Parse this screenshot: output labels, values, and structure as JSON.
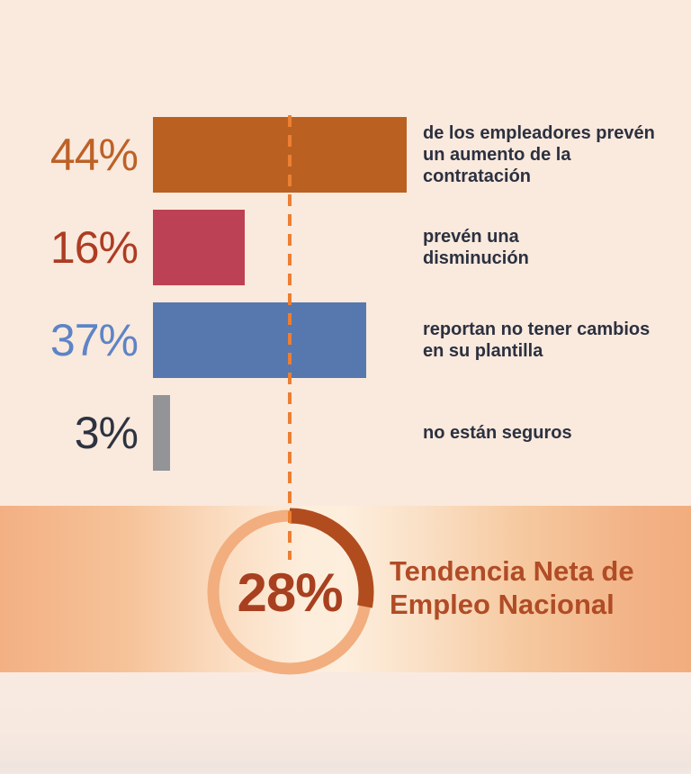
{
  "chart_data": {
    "type": "bar",
    "orientation": "horizontal",
    "unit": "percent",
    "grid": false,
    "xlim": [
      0,
      47
    ],
    "categories": [
      "aumento de la contratación",
      "disminución",
      "sin cambios en plantilla",
      "no seguros"
    ],
    "values": [
      44,
      16,
      37,
      3
    ],
    "bars": [
      {
        "value": 44,
        "label": "44%",
        "description_lines": [
          "de los empleadores prevén",
          "un aumento de la",
          "contratación"
        ],
        "bar_color": "#ba6122",
        "value_color": "#bd6127"
      },
      {
        "value": 16,
        "label": "16%",
        "description_lines": [
          "prevén una",
          "disminución"
        ],
        "bar_color": "#bd4154",
        "value_color": "#ad3c22"
      },
      {
        "value": 37,
        "label": "37%",
        "description_lines": [
          "reportan no tener cambios",
          "en su plantilla"
        ],
        "bar_color": "#5678af",
        "value_color": "#5d84c6"
      },
      {
        "value": 3,
        "label": "3%",
        "description_lines": [
          "no están seguros"
        ],
        "bar_color": "#929497",
        "value_color": "#2d3340"
      }
    ],
    "reference_line": {
      "style": "dashed",
      "color": "#ec7f33"
    },
    "gauge": {
      "value": 28,
      "label": "28%",
      "title_lines": [
        "Tendencia Neta de",
        "Empleo Nacional"
      ],
      "ring_color": "#f2ae7e",
      "arc_color": "#b14c1e",
      "label_color": "#a84020",
      "title_color": "#b04c26"
    }
  },
  "colors": {
    "background": "#fae9dd",
    "band_edge": "#f3b083",
    "band_center": "#fdeedd",
    "description_text": "#2b3140"
  }
}
